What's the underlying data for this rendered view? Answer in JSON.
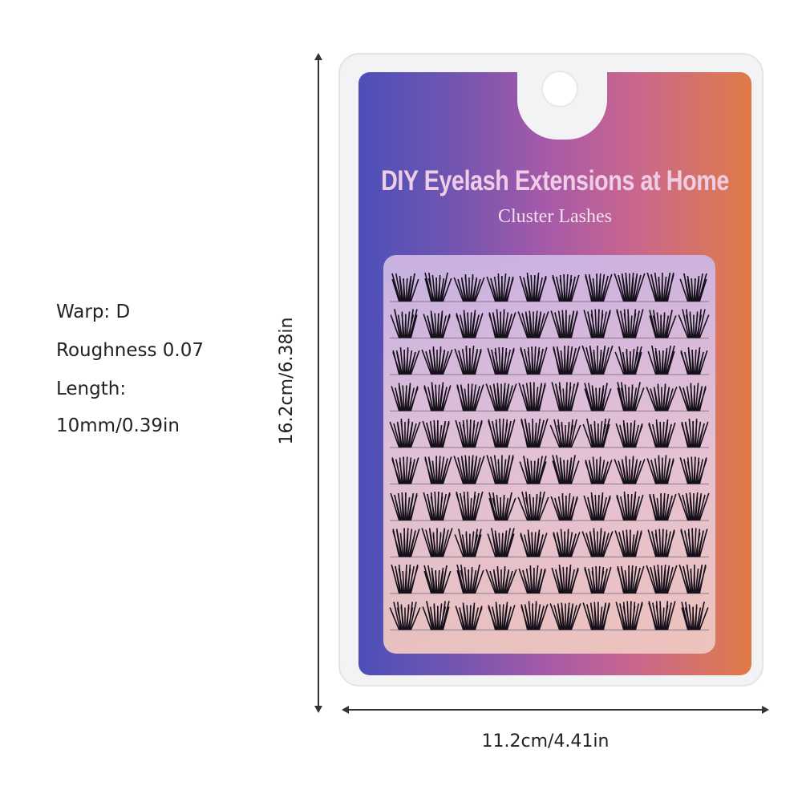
{
  "specs": {
    "warp": "Warp: D",
    "roughness": "Roughness 0.07",
    "length_label": "Length:",
    "length_value": "10mm/0.39in"
  },
  "dimensions": {
    "height": "16.2cm/6.38in",
    "width": "11.2cm/4.41in"
  },
  "package": {
    "title": "DIY Eyelash Extensions at Home",
    "subtitle": "Cluster Lashes",
    "lash_rows": 10,
    "lash_columns": 10,
    "colors": {
      "gradient_left": "#4b50b8",
      "gradient_mid": "#a65aa8",
      "gradient_right": "#e07a45",
      "text": "#f0cde6"
    }
  }
}
